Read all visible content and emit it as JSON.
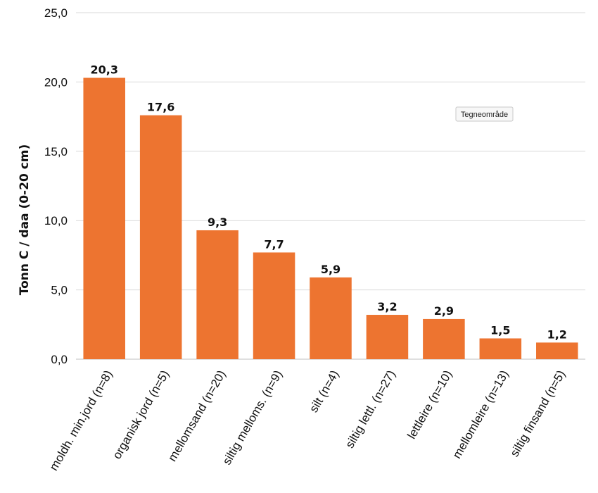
{
  "chart_data": {
    "type": "bar",
    "title": "",
    "xlabel": "",
    "ylabel": "Tonn C / daa (0-20 cm)",
    "ylim": [
      0,
      25
    ],
    "yticks": [
      0,
      5,
      10,
      15,
      20,
      25
    ],
    "ytick_labels": [
      "0,0",
      "5,0",
      "10,0",
      "15,0",
      "20,0",
      "25,0"
    ],
    "grid": true,
    "legend": "none",
    "categories": [
      "moldh. min.jord (n=8)",
      "organisk jord (n=5)",
      "mellomsand (n=20)",
      "siltig melloms. (n=9)",
      "silt (n=4)",
      "siltig lettl. (n=27)",
      "lettleire (n=10)",
      "mellomleire (n=13)",
      "siltig finsand (n=5)"
    ],
    "values": [
      20.3,
      17.6,
      9.3,
      7.7,
      5.9,
      3.2,
      2.9,
      1.5,
      1.2
    ],
    "value_labels": [
      "20,3",
      "17,6",
      "9,3",
      "7,7",
      "5,9",
      "3,2",
      "2,9",
      "1,5",
      "1,2"
    ],
    "bar_color": "#ED7430",
    "grid_color": "#D9D9D9",
    "tooltip": "Tegneområde"
  }
}
